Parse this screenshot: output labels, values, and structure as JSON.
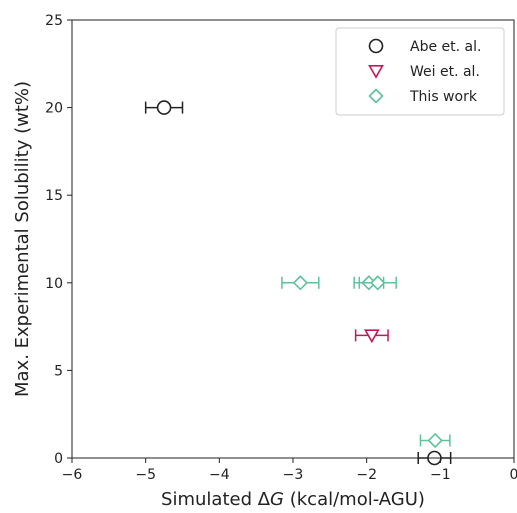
{
  "chart_data": {
    "type": "scatter",
    "xlabel_prefix": "Simulated Δ",
    "xlabel_var": "G",
    "xlabel_suffix": " (kcal/mol-AGU)",
    "ylabel": "Max. Experimental Solubility (wt%)",
    "xlim": [
      -6,
      0
    ],
    "ylim": [
      0,
      25
    ],
    "xticks": [
      -6,
      -5,
      -4,
      -3,
      -2,
      -1,
      0
    ],
    "xtick_labels": [
      "−6",
      "−5",
      "−4",
      "−3",
      "−2",
      "−1",
      "0"
    ],
    "yticks": [
      0,
      5,
      10,
      15,
      20,
      25
    ],
    "ytick_labels": [
      "0",
      "5",
      "10",
      "15",
      "20",
      "25"
    ],
    "grid": false,
    "legend_position": "top-right",
    "series": [
      {
        "name": "Abe et. al.",
        "marker": "circle",
        "color": "#222222",
        "points": [
          {
            "x": -4.75,
            "y": 20,
            "xerr": 0.25
          },
          {
            "x": -1.08,
            "y": 0,
            "xerr": 0.22
          }
        ]
      },
      {
        "name": "Wei et. al.",
        "marker": "triangle-down",
        "color": "#c2185b",
        "points": [
          {
            "x": -1.93,
            "y": 7,
            "xerr": 0.22
          }
        ]
      },
      {
        "name": "This work",
        "marker": "diamond",
        "color": "#5ec29a",
        "points": [
          {
            "x": -2.9,
            "y": 10,
            "xerr": 0.25
          },
          {
            "x": -1.97,
            "y": 10,
            "xerr": 0.2
          },
          {
            "x": -1.85,
            "y": 10,
            "xerr": 0.25
          },
          {
            "x": -1.07,
            "y": 1,
            "xerr": 0.2
          }
        ]
      }
    ]
  }
}
